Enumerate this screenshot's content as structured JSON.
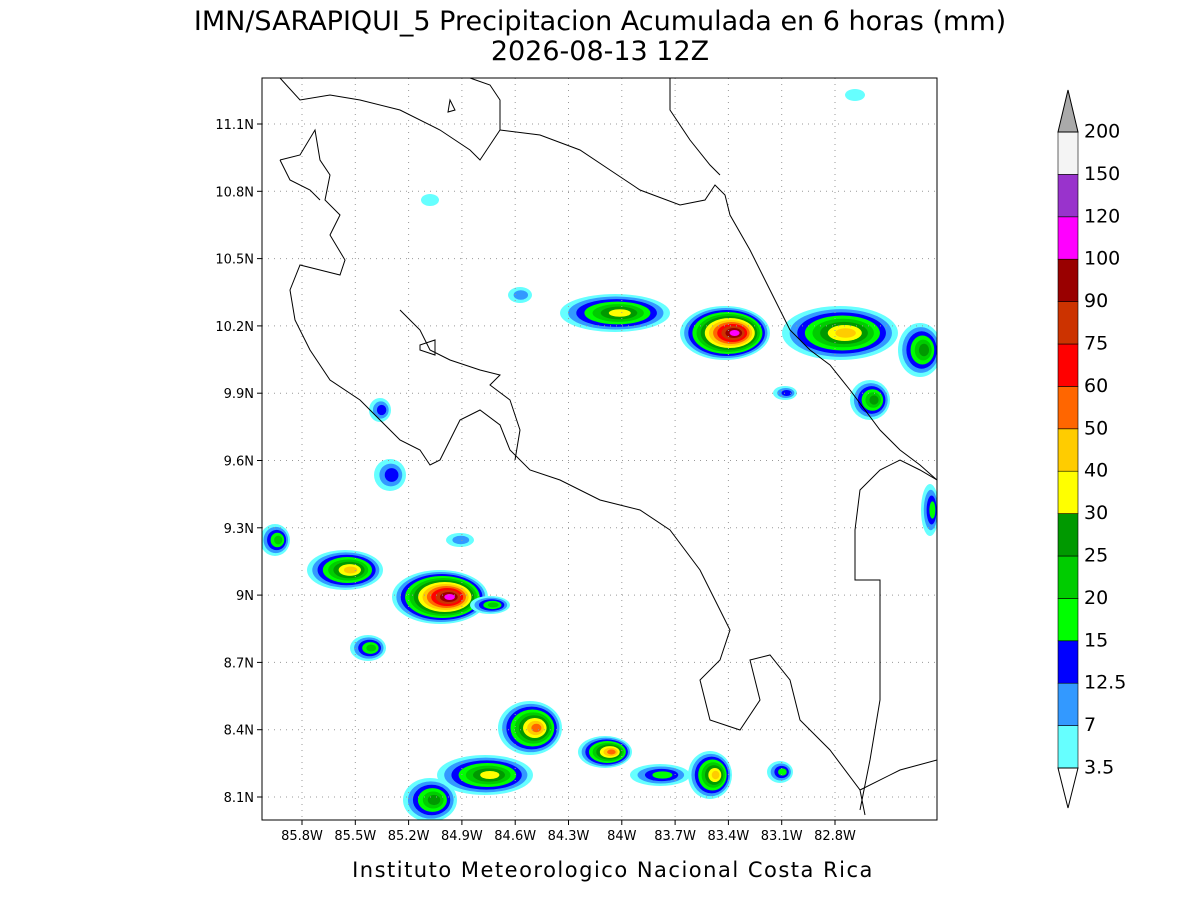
{
  "header": {
    "title": "IMN/SARAPIQUI_5 Precipitacion Acumulada en 6 horas (mm)",
    "subtitle": "2026-08-13 12Z"
  },
  "map": {
    "lon_labels": [
      "85.8W",
      "85.5W",
      "85.2W",
      "84.9W",
      "84.6W",
      "84.3W",
      "84W",
      "83.7W",
      "83.4W",
      "83.1W",
      "82.8W"
    ],
    "lat_labels": [
      "11.1N",
      "10.8N",
      "10.5N",
      "10.2N",
      "9.9N",
      "9.6N",
      "9.3N",
      "9N",
      "8.7N",
      "8.4N",
      "8.1N"
    ]
  },
  "colorbar": {
    "levels": [
      3.5,
      7,
      12.5,
      15,
      20,
      25,
      30,
      40,
      50,
      60,
      75,
      90,
      100,
      120,
      150,
      200
    ],
    "colors": [
      "#66ffff",
      "#3399ff",
      "#0000ff",
      "#00ff00",
      "#00cc00",
      "#009900",
      "#ffff00",
      "#ffcc00",
      "#ff6600",
      "#ff0000",
      "#cc3300",
      "#990000",
      "#ff00ff",
      "#9933cc",
      "#f4f4f4"
    ],
    "under_color": "#ffffff",
    "over_color": "#aaaaaa"
  },
  "footer": "Instituto Meteorologico Nacional Costa Rica"
}
